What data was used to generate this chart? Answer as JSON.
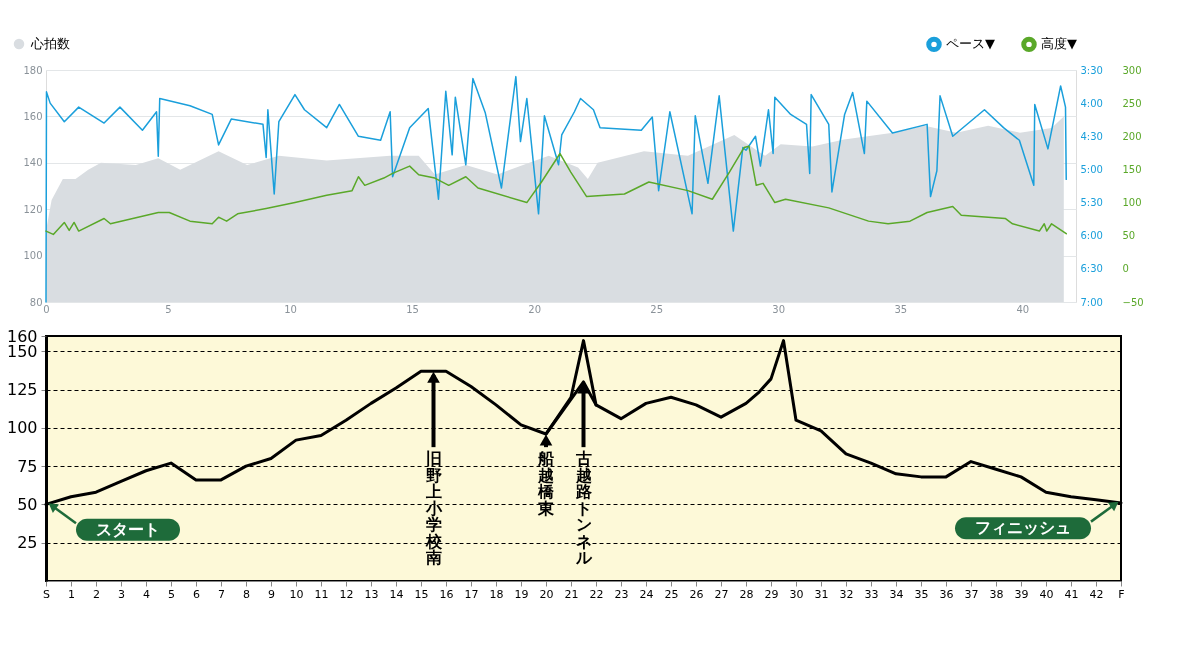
{
  "chart_data": [
    {
      "type": "line",
      "xlim": [
        0,
        42.2
      ],
      "xticks": [
        0,
        5,
        10,
        15,
        20,
        25,
        30,
        35,
        40
      ],
      "ylim": [
        80,
        180
      ],
      "yticks": [
        80,
        100,
        120,
        140,
        160,
        180
      ],
      "y2lim": [
        7,
        3.5
      ],
      "y2ticks": [
        {
          "value": 3.5,
          "label": "3:30"
        },
        {
          "value": 4,
          "label": "4:00"
        },
        {
          "value": 4.5,
          "label": "4:30"
        },
        {
          "value": 5,
          "label": "5:00"
        },
        {
          "value": 5.5,
          "label": "5:30"
        },
        {
          "value": 6,
          "label": "6:00"
        },
        {
          "value": 6.5,
          "label": "6:30"
        },
        {
          "value": 7,
          "label": "7:00"
        }
      ],
      "y3lim": [
        -50,
        300
      ],
      "y3ticks": [
        -50,
        0,
        50,
        100,
        150,
        200,
        250,
        300
      ],
      "grid": "y",
      "legend": "top",
      "series": [
        {
          "name": "心拍数",
          "type": "area",
          "axis": "y",
          "color": "#d9dde1",
          "x": [
            0.04,
            0.23,
            0.69,
            1.21,
            1.73,
            2.25,
            3.68,
            4.6,
            5.5,
            7.07,
            8.24,
            9.54,
            11.5,
            14.1,
            15.27,
            15.93,
            17.2,
            18.5,
            19.8,
            20.6,
            21.8,
            22.2,
            22.6,
            24.5,
            26.3,
            28.2,
            29.46,
            30.1,
            31.4,
            32.7,
            34.7,
            36.0,
            37.3,
            38.6,
            39.9,
            41.2,
            41.7
          ],
          "values": [
            113,
            124,
            133,
            133,
            137,
            140,
            139,
            142,
            137,
            145,
            139,
            143,
            141,
            143,
            143,
            135,
            139,
            135,
            140,
            143,
            138,
            133,
            140,
            145,
            143,
            152,
            143,
            148,
            147,
            150,
            153,
            156,
            153,
            156,
            153,
            155,
            160
          ]
        },
        {
          "name": "ペース▼",
          "type": "line",
          "axis": "y2",
          "color": "#1a9fdb",
          "x": [
            0.0,
            0.02,
            0.17,
            0.75,
            1.34,
            2.38,
            3.03,
            3.95,
            4.53,
            4.6,
            4.66,
            5.9,
            6.81,
            7.07,
            7.59,
            8.89,
            9.02,
            9.09,
            9.35,
            9.54,
            10.2,
            10.59,
            11.5,
            12.02,
            12.8,
            13.71,
            14.1,
            14.2,
            14.9,
            15.66,
            16.08,
            16.38,
            16.64,
            16.77,
            17.2,
            17.49,
            18.0,
            18.66,
            19.25,
            19.44,
            19.7,
            20.18,
            20.42,
            21.0,
            21.13,
            21.65,
            21.9,
            22.43,
            22.7,
            24.39,
            24.84,
            25.1,
            25.56,
            26.47,
            26.6,
            27.12,
            27.58,
            28.16,
            28.55,
            28.68,
            29.07,
            29.27,
            29.6,
            29.79,
            29.86,
            30.51,
            31.16,
            31.29,
            31.35,
            32.07,
            32.2,
            32.72,
            33.05,
            33.53,
            33.63,
            34.68,
            36.1,
            36.24,
            36.5,
            36.63,
            37.15,
            38.45,
            39.23,
            39.88,
            40.47,
            40.51,
            41.05,
            41.57,
            41.77,
            41.8
          ],
          "values": [
            7.0,
            3.83,
            4.0,
            4.28,
            4.06,
            4.3,
            4.06,
            4.41,
            4.13,
            4.8,
            3.93,
            4.04,
            4.17,
            4.63,
            4.24,
            4.32,
            4.82,
            4.1,
            5.37,
            4.28,
            3.87,
            4.1,
            4.37,
            4.02,
            4.5,
            4.56,
            4.13,
            5.11,
            4.37,
            4.08,
            5.45,
            3.82,
            4.78,
            3.91,
            4.93,
            3.63,
            4.15,
            5.28,
            3.6,
            4.58,
            3.93,
            5.67,
            4.19,
            4.93,
            4.48,
            4.13,
            3.93,
            4.1,
            4.37,
            4.41,
            4.21,
            5.32,
            4.13,
            5.67,
            4.19,
            5.21,
            3.89,
            5.93,
            4.67,
            4.71,
            4.5,
            4.95,
            4.1,
            4.76,
            3.91,
            4.17,
            4.32,
            5.06,
            3.87,
            4.32,
            5.34,
            4.17,
            3.84,
            4.76,
            3.97,
            4.45,
            4.32,
            5.41,
            5.02,
            3.89,
            4.5,
            4.1,
            4.37,
            4.56,
            5.24,
            4.02,
            4.69,
            3.74,
            4.06,
            5.15
          ]
        },
        {
          "name": "高度▼",
          "type": "line",
          "axis": "y3",
          "color": "#5aa829",
          "x": [
            0.0,
            0.3,
            0.75,
            0.95,
            1.15,
            1.34,
            2.38,
            2.64,
            4.6,
            5.05,
            5.9,
            6.81,
            7.07,
            7.4,
            7.85,
            9.02,
            10.2,
            11.5,
            12.54,
            12.8,
            13.06,
            13.84,
            14.2,
            14.9,
            15.27,
            15.93,
            16.5,
            17.2,
            17.7,
            19.7,
            20.3,
            21.06,
            21.5,
            22.15,
            23.7,
            24.7,
            26.3,
            27.3,
            28.0,
            28.6,
            28.8,
            29.1,
            29.38,
            29.86,
            30.3,
            32.07,
            33.7,
            34.5,
            35.4,
            36.1,
            37.15,
            37.5,
            39.3,
            39.6,
            40.7,
            40.9,
            41.0,
            41.2,
            41.8
          ],
          "values": [
            57,
            52,
            70,
            58,
            70,
            57,
            76,
            68,
            85,
            85,
            72,
            68,
            78,
            72,
            83,
            91,
            100,
            111,
            118,
            139,
            126,
            137,
            144,
            155,
            142,
            137,
            126,
            139,
            122,
            100,
            131,
            174,
            146,
            109,
            113,
            131,
            118,
            105,
            146,
            183,
            185,
            126,
            129,
            100,
            105,
            92,
            72,
            68,
            72,
            85,
            94,
            81,
            76,
            68,
            57,
            68,
            57,
            68,
            53
          ]
        }
      ]
    },
    {
      "type": "line",
      "xlim": [
        0,
        43
      ],
      "xticks": [
        {
          "value": 0,
          "label": "S"
        },
        1,
        2,
        3,
        4,
        5,
        6,
        7,
        8,
        9,
        10,
        11,
        12,
        13,
        14,
        15,
        16,
        17,
        18,
        19,
        20,
        21,
        22,
        23,
        24,
        25,
        26,
        27,
        28,
        29,
        30,
        31,
        32,
        33,
        34,
        35,
        36,
        37,
        38,
        39,
        40,
        41,
        42,
        {
          "value": 43,
          "label": "F"
        }
      ],
      "ylim": [
        0,
        160
      ],
      "yticks": [
        25,
        50,
        75,
        100,
        125,
        150,
        160
      ],
      "grid": "y",
      "series": [
        {
          "color": "#000000",
          "x": [
            0,
            1,
            2,
            3,
            4,
            5,
            6,
            7,
            8,
            9,
            10,
            11,
            12,
            13,
            14,
            15,
            16,
            17,
            18,
            19,
            20,
            21,
            21.5,
            22,
            23,
            24,
            25,
            26,
            27,
            28,
            28.5,
            29,
            29.5,
            30,
            31,
            32,
            33,
            34,
            35,
            36,
            37,
            38,
            39,
            40,
            41,
            42,
            43
          ],
          "values": [
            50,
            55,
            58,
            65,
            72,
            77,
            66,
            66,
            75,
            80,
            92,
            95,
            105,
            116,
            126,
            137,
            137,
            127,
            115,
            102,
            96,
            120,
            157,
            115,
            106,
            116,
            120,
            115,
            107,
            116,
            123,
            132,
            157,
            105,
            98,
            83,
            77,
            70,
            68,
            68,
            78,
            73,
            68,
            58,
            55,
            53,
            51
          ]
        },
        {
          "color": "#000000",
          "x": [
            20,
            21.5,
            22
          ],
          "values": [
            96,
            130,
            115
          ]
        }
      ],
      "annotations": [
        {
          "text": "スタート",
          "x": 0,
          "y": 50
        },
        {
          "text": "旧野上小学校南",
          "x": 15.5,
          "y": 137
        },
        {
          "text": "船越橋東",
          "x": 20,
          "y": 96
        },
        {
          "text": "古越路トンネル",
          "x": 21.5,
          "y": 130
        },
        {
          "text": "フィニッシュ",
          "x": 43,
          "y": 51
        }
      ]
    }
  ]
}
